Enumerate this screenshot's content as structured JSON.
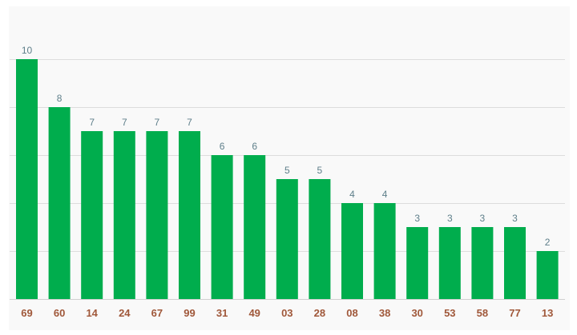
{
  "chart_data": {
    "type": "bar",
    "categories": [
      "69",
      "60",
      "14",
      "24",
      "67",
      "99",
      "31",
      "49",
      "03",
      "28",
      "08",
      "38",
      "30",
      "53",
      "58",
      "77",
      "13"
    ],
    "values": [
      10,
      8,
      7,
      7,
      7,
      7,
      6,
      6,
      5,
      5,
      4,
      4,
      3,
      3,
      3,
      3,
      2
    ],
    "title": "",
    "xlabel": "",
    "ylabel": "",
    "ylim": [
      0,
      10
    ],
    "grid": true,
    "bar_color": "#00ad4d",
    "value_label_color": "#5e7f8a",
    "tick_label_color": "#a0583a",
    "grid_color": "#dddddd"
  }
}
